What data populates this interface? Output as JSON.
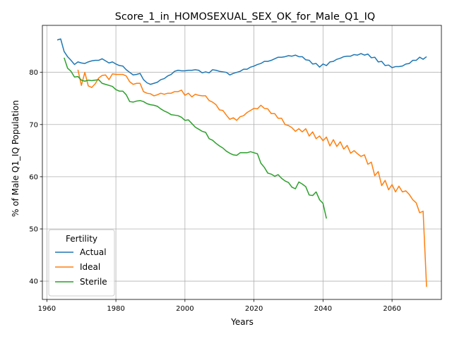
{
  "chart_data": {
    "type": "line",
    "title": "Score_1_in_HOMOSEXUAL_SEX_OK_for_Male_Q1_IQ",
    "xlabel": "Years",
    "ylabel": "% of Male Q1_IQ Population",
    "xlim": [
      1958.7,
      2074.3
    ],
    "ylim": [
      36.5,
      89.0
    ],
    "x_ticks": [
      1960,
      1980,
      2000,
      2020,
      2040,
      2060
    ],
    "y_ticks": [
      40,
      50,
      60,
      70,
      80
    ],
    "grid": true,
    "legend": {
      "title": "Fertility",
      "placement": "lower-left"
    },
    "series": [
      {
        "name": "Actual",
        "color": "#1f77b4",
        "points": [
          [
            1963,
            86.2
          ],
          [
            1964,
            86.4
          ],
          [
            1965,
            84.0
          ],
          [
            1966,
            83.0
          ],
          [
            1967,
            82.3
          ],
          [
            1968,
            81.5
          ],
          [
            1969,
            82.0
          ],
          [
            1970,
            81.8
          ],
          [
            1971,
            81.7
          ],
          [
            1972,
            82.0
          ],
          [
            1973,
            82.2
          ],
          [
            1974,
            82.3
          ],
          [
            1975,
            82.3
          ],
          [
            1976,
            82.6
          ],
          [
            1977,
            82.2
          ],
          [
            1978,
            81.8
          ],
          [
            1979,
            82.0
          ],
          [
            1980,
            81.6
          ],
          [
            1981,
            81.3
          ],
          [
            1982,
            81.2
          ],
          [
            1983,
            80.5
          ],
          [
            1984,
            80.0
          ],
          [
            1985,
            79.5
          ],
          [
            1986,
            79.6
          ],
          [
            1987,
            79.8
          ],
          [
            1988,
            78.6
          ],
          [
            1989,
            78.0
          ],
          [
            1990,
            77.7
          ],
          [
            1991,
            77.9
          ],
          [
            1992,
            78.1
          ],
          [
            1993,
            78.6
          ],
          [
            1994,
            78.8
          ],
          [
            1995,
            79.3
          ],
          [
            1996,
            79.6
          ],
          [
            1997,
            80.2
          ],
          [
            1998,
            80.4
          ],
          [
            1999,
            80.3
          ],
          [
            2000,
            80.3
          ],
          [
            2001,
            80.4
          ],
          [
            2002,
            80.4
          ],
          [
            2003,
            80.5
          ],
          [
            2004,
            80.4
          ],
          [
            2005,
            79.9
          ],
          [
            2006,
            80.1
          ],
          [
            2007,
            79.9
          ],
          [
            2008,
            80.5
          ],
          [
            2009,
            80.4
          ],
          [
            2010,
            80.2
          ],
          [
            2011,
            80.1
          ],
          [
            2012,
            80.0
          ],
          [
            2013,
            79.5
          ],
          [
            2014,
            79.8
          ],
          [
            2015,
            80.0
          ],
          [
            2016,
            80.2
          ],
          [
            2017,
            80.6
          ],
          [
            2018,
            80.6
          ],
          [
            2019,
            81.0
          ],
          [
            2020,
            81.2
          ],
          [
            2021,
            81.5
          ],
          [
            2022,
            81.7
          ],
          [
            2023,
            82.1
          ],
          [
            2024,
            82.1
          ],
          [
            2025,
            82.3
          ],
          [
            2026,
            82.6
          ],
          [
            2027,
            82.9
          ],
          [
            2028,
            82.9
          ],
          [
            2029,
            83.0
          ],
          [
            2030,
            83.2
          ],
          [
            2031,
            83.1
          ],
          [
            2032,
            83.3
          ],
          [
            2033,
            83.0
          ],
          [
            2034,
            83.0
          ],
          [
            2035,
            82.4
          ],
          [
            2036,
            82.3
          ],
          [
            2037,
            81.6
          ],
          [
            2038,
            81.7
          ],
          [
            2039,
            81.0
          ],
          [
            2040,
            81.6
          ],
          [
            2041,
            81.3
          ],
          [
            2042,
            82.0
          ],
          [
            2043,
            82.1
          ],
          [
            2044,
            82.5
          ],
          [
            2045,
            82.7
          ],
          [
            2046,
            83.0
          ],
          [
            2047,
            83.1
          ],
          [
            2048,
            83.1
          ],
          [
            2049,
            83.4
          ],
          [
            2050,
            83.3
          ],
          [
            2051,
            83.6
          ],
          [
            2052,
            83.3
          ],
          [
            2053,
            83.5
          ],
          [
            2054,
            82.8
          ],
          [
            2055,
            82.9
          ],
          [
            2056,
            82.0
          ],
          [
            2057,
            82.1
          ],
          [
            2058,
            81.3
          ],
          [
            2059,
            81.4
          ],
          [
            2060,
            80.9
          ],
          [
            2061,
            81.1
          ],
          [
            2062,
            81.1
          ],
          [
            2063,
            81.2
          ],
          [
            2064,
            81.6
          ],
          [
            2065,
            81.7
          ],
          [
            2066,
            82.3
          ],
          [
            2067,
            82.3
          ],
          [
            2068,
            82.9
          ],
          [
            2069,
            82.5
          ],
          [
            2070,
            83.0
          ]
        ]
      },
      {
        "name": "Ideal",
        "color": "#ff7f0e",
        "points": [
          [
            1969,
            80.5
          ],
          [
            1970,
            77.5
          ],
          [
            1971,
            80.0
          ],
          [
            1972,
            77.4
          ],
          [
            1973,
            77.1
          ],
          [
            1974,
            77.8
          ],
          [
            1975,
            78.9
          ],
          [
            1976,
            79.4
          ],
          [
            1977,
            79.5
          ],
          [
            1978,
            78.6
          ],
          [
            1979,
            79.7
          ],
          [
            1980,
            79.6
          ],
          [
            1981,
            79.6
          ],
          [
            1982,
            79.6
          ],
          [
            1983,
            79.3
          ],
          [
            1984,
            78.2
          ],
          [
            1985,
            77.7
          ],
          [
            1986,
            77.9
          ],
          [
            1987,
            77.9
          ],
          [
            1988,
            76.3
          ],
          [
            1989,
            76.0
          ],
          [
            1990,
            75.9
          ],
          [
            1991,
            75.5
          ],
          [
            1992,
            75.7
          ],
          [
            1993,
            76.0
          ],
          [
            1994,
            75.8
          ],
          [
            1995,
            76.0
          ],
          [
            1996,
            76.0
          ],
          [
            1997,
            76.3
          ],
          [
            1998,
            76.3
          ],
          [
            1999,
            76.6
          ],
          [
            2000,
            75.6
          ],
          [
            2001,
            76.0
          ],
          [
            2002,
            75.3
          ],
          [
            2003,
            75.8
          ],
          [
            2004,
            75.6
          ],
          [
            2005,
            75.5
          ],
          [
            2006,
            75.5
          ],
          [
            2007,
            74.6
          ],
          [
            2008,
            74.3
          ],
          [
            2009,
            73.8
          ],
          [
            2010,
            72.8
          ],
          [
            2011,
            72.7
          ],
          [
            2012,
            71.8
          ],
          [
            2013,
            71.0
          ],
          [
            2014,
            71.3
          ],
          [
            2015,
            70.8
          ],
          [
            2016,
            71.5
          ],
          [
            2017,
            71.7
          ],
          [
            2018,
            72.3
          ],
          [
            2019,
            72.7
          ],
          [
            2020,
            73.1
          ],
          [
            2021,
            73.0
          ],
          [
            2022,
            73.7
          ],
          [
            2023,
            73.1
          ],
          [
            2024,
            73.0
          ],
          [
            2025,
            72.1
          ],
          [
            2026,
            72.1
          ],
          [
            2027,
            71.2
          ],
          [
            2028,
            71.2
          ],
          [
            2029,
            70.0
          ],
          [
            2030,
            69.8
          ],
          [
            2031,
            69.4
          ],
          [
            2032,
            68.7
          ],
          [
            2033,
            69.2
          ],
          [
            2034,
            68.6
          ],
          [
            2035,
            69.2
          ],
          [
            2036,
            67.8
          ],
          [
            2037,
            68.6
          ],
          [
            2038,
            67.3
          ],
          [
            2039,
            67.8
          ],
          [
            2040,
            66.9
          ],
          [
            2041,
            67.6
          ],
          [
            2042,
            65.9
          ],
          [
            2043,
            67.1
          ],
          [
            2044,
            65.8
          ],
          [
            2045,
            66.7
          ],
          [
            2046,
            65.3
          ],
          [
            2047,
            66.0
          ],
          [
            2048,
            64.5
          ],
          [
            2049,
            65.0
          ],
          [
            2050,
            64.4
          ],
          [
            2051,
            63.9
          ],
          [
            2052,
            64.2
          ],
          [
            2053,
            62.4
          ],
          [
            2054,
            62.8
          ],
          [
            2055,
            60.2
          ],
          [
            2056,
            61.0
          ],
          [
            2057,
            58.3
          ],
          [
            2058,
            59.3
          ],
          [
            2059,
            57.5
          ],
          [
            2060,
            58.5
          ],
          [
            2061,
            57.1
          ],
          [
            2062,
            58.2
          ],
          [
            2063,
            57.1
          ],
          [
            2064,
            57.3
          ],
          [
            2065,
            56.6
          ],
          [
            2066,
            55.6
          ],
          [
            2067,
            55.0
          ],
          [
            2068,
            53.1
          ],
          [
            2069,
            53.4
          ],
          [
            2070,
            38.9
          ]
        ]
      },
      {
        "name": "Sterile",
        "color": "#2ca02c",
        "points": [
          [
            1965,
            82.8
          ],
          [
            1966,
            80.8
          ],
          [
            1967,
            80.2
          ],
          [
            1968,
            79.1
          ],
          [
            1969,
            79.2
          ],
          [
            1970,
            78.5
          ],
          [
            1971,
            78.3
          ],
          [
            1972,
            78.5
          ],
          [
            1973,
            78.4
          ],
          [
            1974,
            78.5
          ],
          [
            1975,
            78.6
          ],
          [
            1976,
            77.9
          ],
          [
            1977,
            77.7
          ],
          [
            1978,
            77.5
          ],
          [
            1979,
            77.3
          ],
          [
            1980,
            76.7
          ],
          [
            1981,
            76.4
          ],
          [
            1982,
            76.4
          ],
          [
            1983,
            75.7
          ],
          [
            1984,
            74.4
          ],
          [
            1985,
            74.3
          ],
          [
            1986,
            74.5
          ],
          [
            1987,
            74.6
          ],
          [
            1988,
            74.4
          ],
          [
            1989,
            74.0
          ],
          [
            1990,
            73.8
          ],
          [
            1991,
            73.7
          ],
          [
            1992,
            73.5
          ],
          [
            1993,
            73.0
          ],
          [
            1994,
            72.6
          ],
          [
            1995,
            72.3
          ],
          [
            1996,
            71.9
          ],
          [
            1997,
            71.8
          ],
          [
            1998,
            71.7
          ],
          [
            1999,
            71.4
          ],
          [
            2000,
            70.8
          ],
          [
            2001,
            70.9
          ],
          [
            2002,
            70.2
          ],
          [
            2003,
            69.5
          ],
          [
            2004,
            69.1
          ],
          [
            2005,
            68.7
          ],
          [
            2006,
            68.5
          ],
          [
            2007,
            67.3
          ],
          [
            2008,
            67.0
          ],
          [
            2009,
            66.4
          ],
          [
            2010,
            65.9
          ],
          [
            2011,
            65.5
          ],
          [
            2012,
            64.9
          ],
          [
            2013,
            64.5
          ],
          [
            2014,
            64.2
          ],
          [
            2015,
            64.1
          ],
          [
            2016,
            64.6
          ],
          [
            2017,
            64.6
          ],
          [
            2018,
            64.6
          ],
          [
            2019,
            64.8
          ],
          [
            2020,
            64.6
          ],
          [
            2021,
            64.4
          ],
          [
            2022,
            62.6
          ],
          [
            2023,
            61.8
          ],
          [
            2024,
            60.7
          ],
          [
            2025,
            60.5
          ],
          [
            2026,
            60.1
          ],
          [
            2027,
            60.4
          ],
          [
            2028,
            59.7
          ],
          [
            2029,
            59.2
          ],
          [
            2030,
            58.9
          ],
          [
            2031,
            58.0
          ],
          [
            2032,
            57.7
          ],
          [
            2033,
            59.0
          ],
          [
            2034,
            58.6
          ],
          [
            2035,
            58.1
          ],
          [
            2036,
            56.5
          ],
          [
            2037,
            56.4
          ],
          [
            2038,
            57.1
          ],
          [
            2039,
            55.6
          ],
          [
            2040,
            54.9
          ],
          [
            2041,
            52.0
          ]
        ]
      }
    ]
  }
}
